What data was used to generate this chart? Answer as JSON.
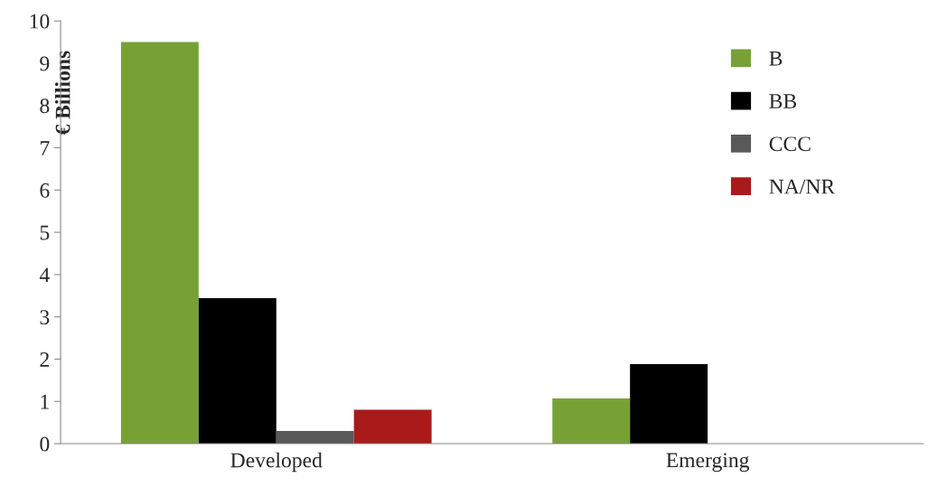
{
  "chart_data": {
    "type": "bar",
    "ylabel": "€ Billions",
    "categories": [
      "Developed",
      "Emerging"
    ],
    "series": [
      {
        "name": "B",
        "color": "#77a135",
        "values": [
          9.5,
          1.07
        ]
      },
      {
        "name": "BB",
        "color": "#000000",
        "values": [
          3.44,
          1.88
        ]
      },
      {
        "name": "CCC",
        "color": "#595959",
        "values": [
          0.3,
          null
        ]
      },
      {
        "name": "NA/NR",
        "color": "#aa1a1a",
        "values": [
          0.8,
          null
        ]
      }
    ],
    "ylim": [
      0,
      10
    ],
    "yticks": [
      0,
      1,
      2,
      3,
      4,
      5,
      6,
      7,
      8,
      9,
      10
    ],
    "grid": false,
    "legend": "top right"
  }
}
